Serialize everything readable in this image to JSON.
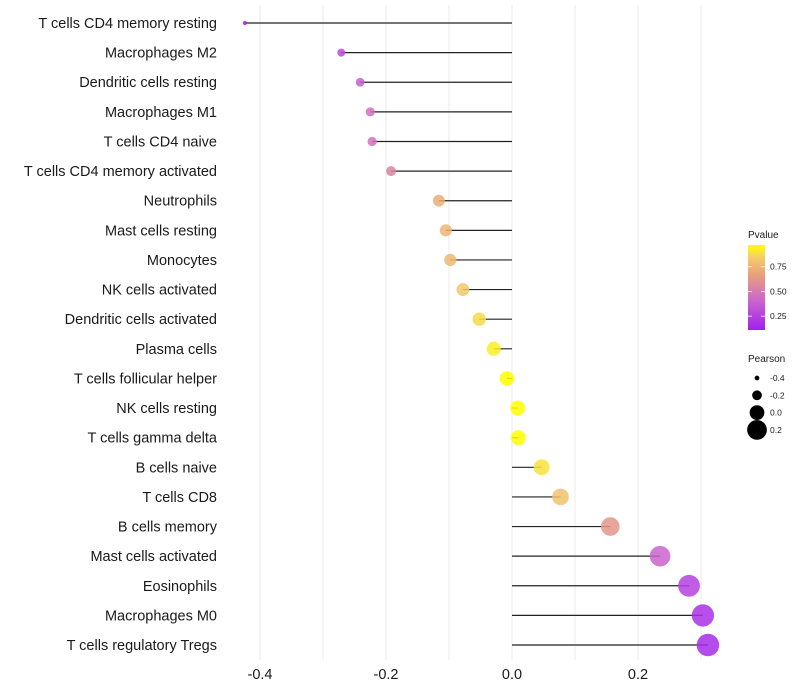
{
  "chart_data": {
    "type": "lollipop",
    "title": "",
    "xlabel": "",
    "ylabel": "",
    "xlim": [
      -0.43,
      0.32
    ],
    "x_ticks": [
      -0.4,
      -0.2,
      0.0,
      0.2
    ],
    "x_tick_labels": [
      "-0.4",
      "-0.2",
      "0.0",
      "0.2"
    ],
    "grid": true,
    "categories": [
      "T cells CD4 memory resting",
      "Macrophages M2",
      "Dendritic cells resting",
      "Macrophages M1",
      "T cells CD4 naive",
      "T cells CD4 memory activated",
      "Neutrophils",
      "Mast cells resting",
      "Monocytes",
      "NK cells activated",
      "Dendritic cells activated",
      "Plasma cells",
      "T cells follicular helper",
      "NK cells resting",
      "T cells gamma delta",
      "B cells naive",
      "T cells CD8",
      "B cells memory",
      "Mast cells activated",
      "Eosinophils",
      "Macrophages M0",
      "T cells regulatory  Tregs"
    ],
    "series": [
      {
        "name": "Pearson",
        "values": [
          -0.424,
          -0.271,
          -0.241,
          -0.225,
          -0.222,
          -0.192,
          -0.116,
          -0.105,
          -0.098,
          -0.078,
          -0.052,
          -0.029,
          -0.008,
          0.009,
          0.01,
          0.047,
          0.077,
          0.156,
          0.235,
          0.281,
          0.303,
          0.311
        ]
      },
      {
        "name": "Pvalue",
        "values": [
          0.12,
          0.3,
          0.38,
          0.45,
          0.46,
          0.55,
          0.72,
          0.75,
          0.77,
          0.82,
          0.88,
          0.93,
          0.98,
          0.97,
          0.97,
          0.9,
          0.8,
          0.62,
          0.4,
          0.25,
          0.18,
          0.16
        ]
      }
    ],
    "legend": {
      "placement": "right",
      "color": {
        "title": "Pvalue",
        "ticks": [
          0.75,
          0.5,
          0.25
        ],
        "tick_labels": [
          "0.75",
          "0.50",
          "0.25"
        ],
        "range": [
          0.11,
          0.97
        ],
        "low_color": "#a020f0",
        "high_color": "#ffff00"
      },
      "size": {
        "title": "Pearson",
        "values": [
          -0.4,
          -0.2,
          0.0,
          0.2
        ],
        "labels": [
          "-0.4",
          "-0.2",
          "0.0",
          "0.2"
        ]
      }
    }
  }
}
